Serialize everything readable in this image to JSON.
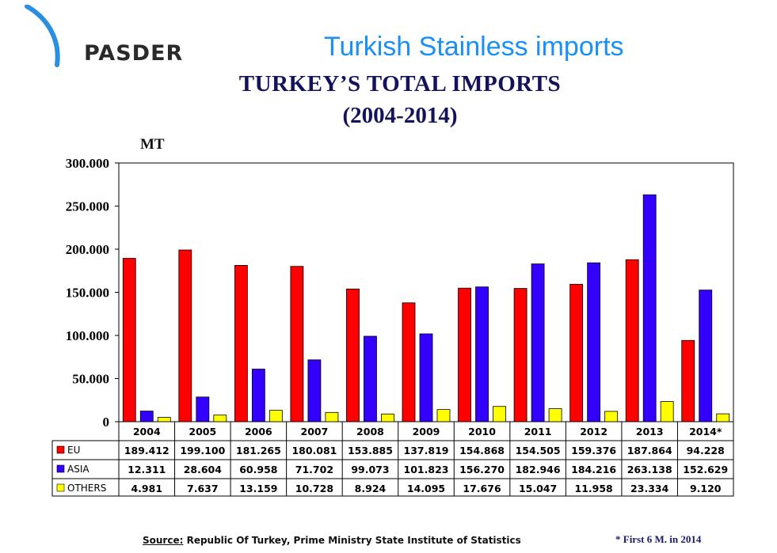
{
  "logo": {
    "text": "PASDER"
  },
  "header": {
    "title": "Turkish Stainless imports"
  },
  "chart_data": {
    "type": "bar",
    "title": "TURKEY’S TOTAL IMPORTS",
    "subtitle": "(2004-2014)",
    "ylabel": "MT",
    "ylim": [
      0,
      300000
    ],
    "yticks": [
      0,
      50000,
      100000,
      150000,
      200000,
      250000,
      300000
    ],
    "ytick_labels": [
      "0",
      "50.000",
      "100.000",
      "150.000",
      "200.000",
      "250.000",
      "300.000"
    ],
    "grid": false,
    "legend": "table-left",
    "categories": [
      "2004",
      "2005",
      "2006",
      "2007",
      "2008",
      "2009",
      "2010",
      "2011",
      "2012",
      "2013",
      "2014*"
    ],
    "series": [
      {
        "name": "EU",
        "color": "#ff0000",
        "values": [
          189412,
          199100,
          181265,
          180081,
          153885,
          137819,
          154868,
          154505,
          159376,
          187864,
          94228
        ],
        "labels": [
          "189.412",
          "199.100",
          "181.265",
          "180.081",
          "153.885",
          "137.819",
          "154.868",
          "154.505",
          "159.376",
          "187.864",
          "94.228"
        ]
      },
      {
        "name": "ASIA",
        "color": "#3300ff",
        "values": [
          12311,
          28604,
          60958,
          71702,
          99073,
          101823,
          156270,
          182946,
          184216,
          263138,
          152629
        ],
        "labels": [
          "12.311",
          "28.604",
          "60.958",
          "71.702",
          "99.073",
          "101.823",
          "156.270",
          "182.946",
          "184.216",
          "263.138",
          "152.629"
        ]
      },
      {
        "name": "OTHERS",
        "color": "#ffff00",
        "values": [
          4981,
          7637,
          13159,
          10728,
          8924,
          14095,
          17676,
          15047,
          11958,
          23334,
          9120
        ],
        "labels": [
          "4.981",
          "7.637",
          "13.159",
          "10.728",
          "8.924",
          "14.095",
          "17.676",
          "15.047",
          "11.958",
          "23.334",
          "9.120"
        ]
      }
    ]
  },
  "footer": {
    "source_label": "Source:",
    "source_text": " Republic Of Turkey, Prime Ministry State Institute of Statistics",
    "note": "*  First  6 M. in 2014"
  }
}
